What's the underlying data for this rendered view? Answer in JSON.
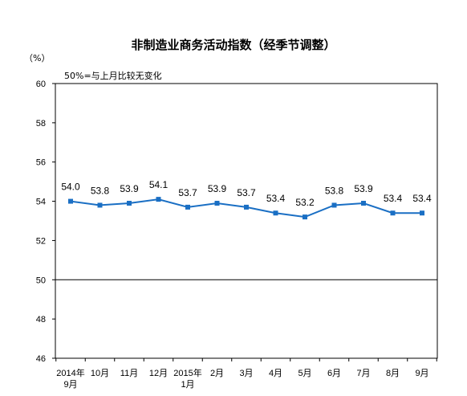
{
  "chart_data": {
    "type": "line",
    "title": "非制造业商务活动指数（经季节调整）",
    "unit_label": "（%）",
    "note": "50%=与上月比较无变化",
    "categories": [
      [
        "2014年",
        "9月"
      ],
      [
        "10月"
      ],
      [
        "11月"
      ],
      [
        "12月"
      ],
      [
        "2015年",
        "1月"
      ],
      [
        "2月"
      ],
      [
        "3月"
      ],
      [
        "4月"
      ],
      [
        "5月"
      ],
      [
        "6月"
      ],
      [
        "7月"
      ],
      [
        "8月"
      ],
      [
        "9月"
      ]
    ],
    "series": [
      {
        "values": [
          54.0,
          53.8,
          53.9,
          54.1,
          53.7,
          53.9,
          53.7,
          53.4,
          53.2,
          53.8,
          53.9,
          53.4,
          53.4
        ],
        "labels": [
          "54.0",
          "53.8",
          "53.9",
          "54.1",
          "53.7",
          "53.9",
          "53.7",
          "53.4",
          "53.2",
          "53.8",
          "53.9",
          "53.4",
          "53.4"
        ],
        "color": "#1a6fc4"
      }
    ],
    "ylim": [
      46,
      60
    ],
    "yticks": [
      "46",
      "48",
      "50",
      "52",
      "54",
      "56",
      "58",
      "60"
    ],
    "reference_line": 50,
    "grid": false
  }
}
